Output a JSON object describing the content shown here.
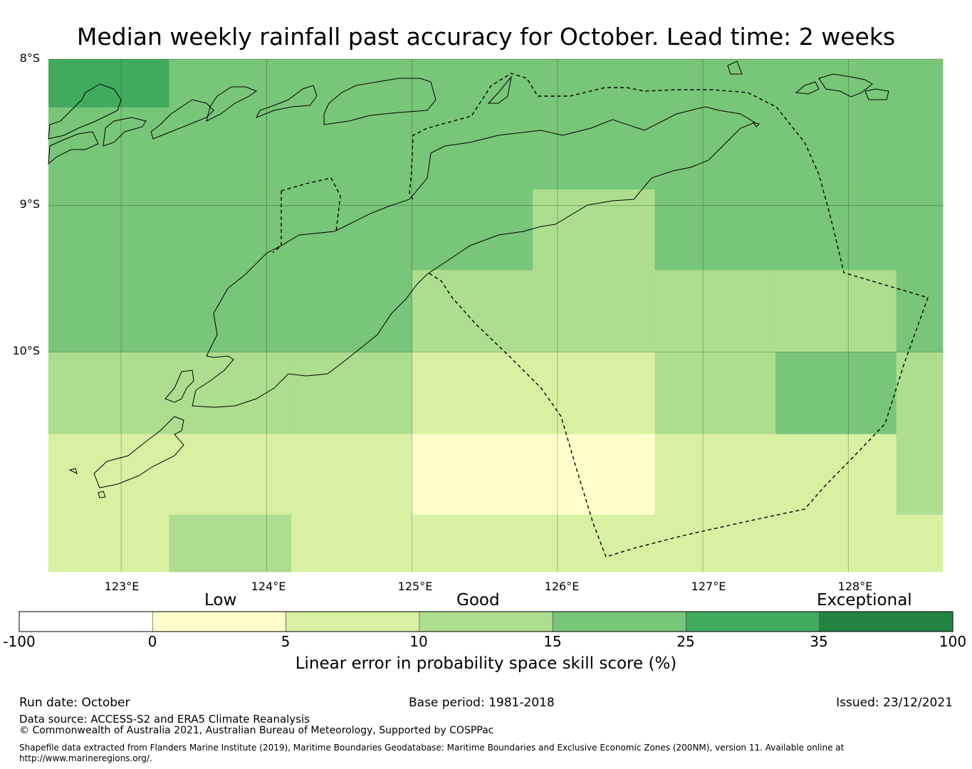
{
  "title": "Median weekly rainfall past accuracy for October. Lead time: 2 weeks",
  "map": {
    "lat_labels": [
      "8°S",
      "9°S",
      "10°S"
    ],
    "lon_labels": [
      "123°E",
      "124°E",
      "125°E",
      "126°E",
      "127°E",
      "128°E"
    ],
    "lon_range": [
      122.5,
      128.65
    ],
    "lat_range": [
      -11.5,
      -8.0
    ],
    "grid_lines": true,
    "skill_grid": {
      "lon_edges": [
        122.5,
        123.33,
        124.17,
        125.0,
        125.83,
        126.67,
        127.5,
        128.33,
        128.65
      ],
      "lat_edges": [
        -8.0,
        -8.33,
        -8.89,
        -9.44,
        -10.0,
        -10.56,
        -11.11,
        -11.5
      ],
      "skill_percent": [
        [
          30,
          20,
          20,
          20,
          20,
          20,
          20,
          20
        ],
        [
          20,
          20,
          20,
          20,
          20,
          20,
          20,
          20
        ],
        [
          20,
          20,
          20,
          20,
          12.5,
          20,
          20,
          20
        ],
        [
          20,
          20,
          20,
          12.5,
          12.5,
          12.5,
          12.5,
          20
        ],
        [
          12.5,
          12.5,
          12.5,
          7.5,
          7.5,
          12.5,
          20,
          12.5
        ],
        [
          7.5,
          7.5,
          7.5,
          2.5,
          2.5,
          7.5,
          7.5,
          12.5
        ],
        [
          7.5,
          12.5,
          7.5,
          7.5,
          7.5,
          7.5,
          7.5,
          7.5
        ]
      ]
    }
  },
  "colorbar": {
    "categories": [
      "Low",
      "Good",
      "Exceptional"
    ],
    "ticks": [
      "-100",
      "0",
      "5",
      "10",
      "15",
      "25",
      "35",
      "100"
    ],
    "colors": [
      "#ffffff",
      "#ffffcc",
      "#d9f0a3",
      "#addd8e",
      "#78c679",
      "#41ab5d",
      "#238443"
    ],
    "label": "Linear error in probability space skill score (%)"
  },
  "footer": {
    "run_date": "Run date: October",
    "base_period": "Base period: 1981-2018",
    "issued": "Issued: 23/12/2021",
    "data_source": "Data source: ACCESS-S2 and ERA5 Climate Reanalysis",
    "copyright": "© Commonwealth of Australia 2021, Australian Bureau of Meteorology, Supported by COSPPac",
    "shapefile": "Shapefile data extracted from Flanders Marine Institute (2019), Maritime Boundaries Geodatabase: Maritime Boundaries and Exclusive Economic Zones (200NM), version 11. Available online at http://www.marineregions.org/."
  }
}
